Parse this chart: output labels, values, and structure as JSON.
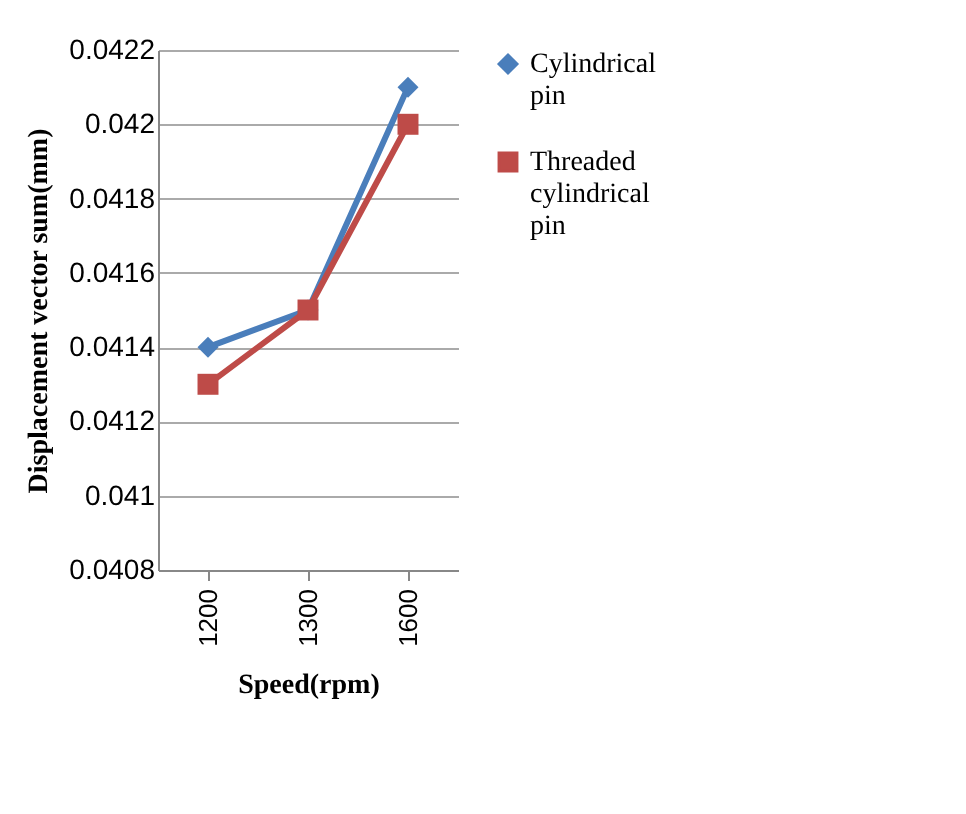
{
  "chart_data": {
    "type": "line",
    "xlabel": "Speed(rpm)",
    "ylabel": "Displacement vector sum(mm)",
    "categories": [
      "1200",
      "1300",
      "1600"
    ],
    "series": [
      {
        "name": "Cylindrical pin",
        "color": "#4a7ebb",
        "marker": "diamond",
        "values": [
          0.0414,
          0.0415,
          0.0421
        ]
      },
      {
        "name": "Threaded cylindrical pin",
        "color": "#be4b48",
        "marker": "square",
        "values": [
          0.0413,
          0.0415,
          0.042
        ]
      }
    ],
    "ylim": [
      0.0408,
      0.0422
    ],
    "yticks": [
      0.0408,
      0.041,
      0.0412,
      0.0414,
      0.0416,
      0.0418,
      0.042,
      0.0422
    ],
    "grid": "y",
    "legend": "right"
  }
}
